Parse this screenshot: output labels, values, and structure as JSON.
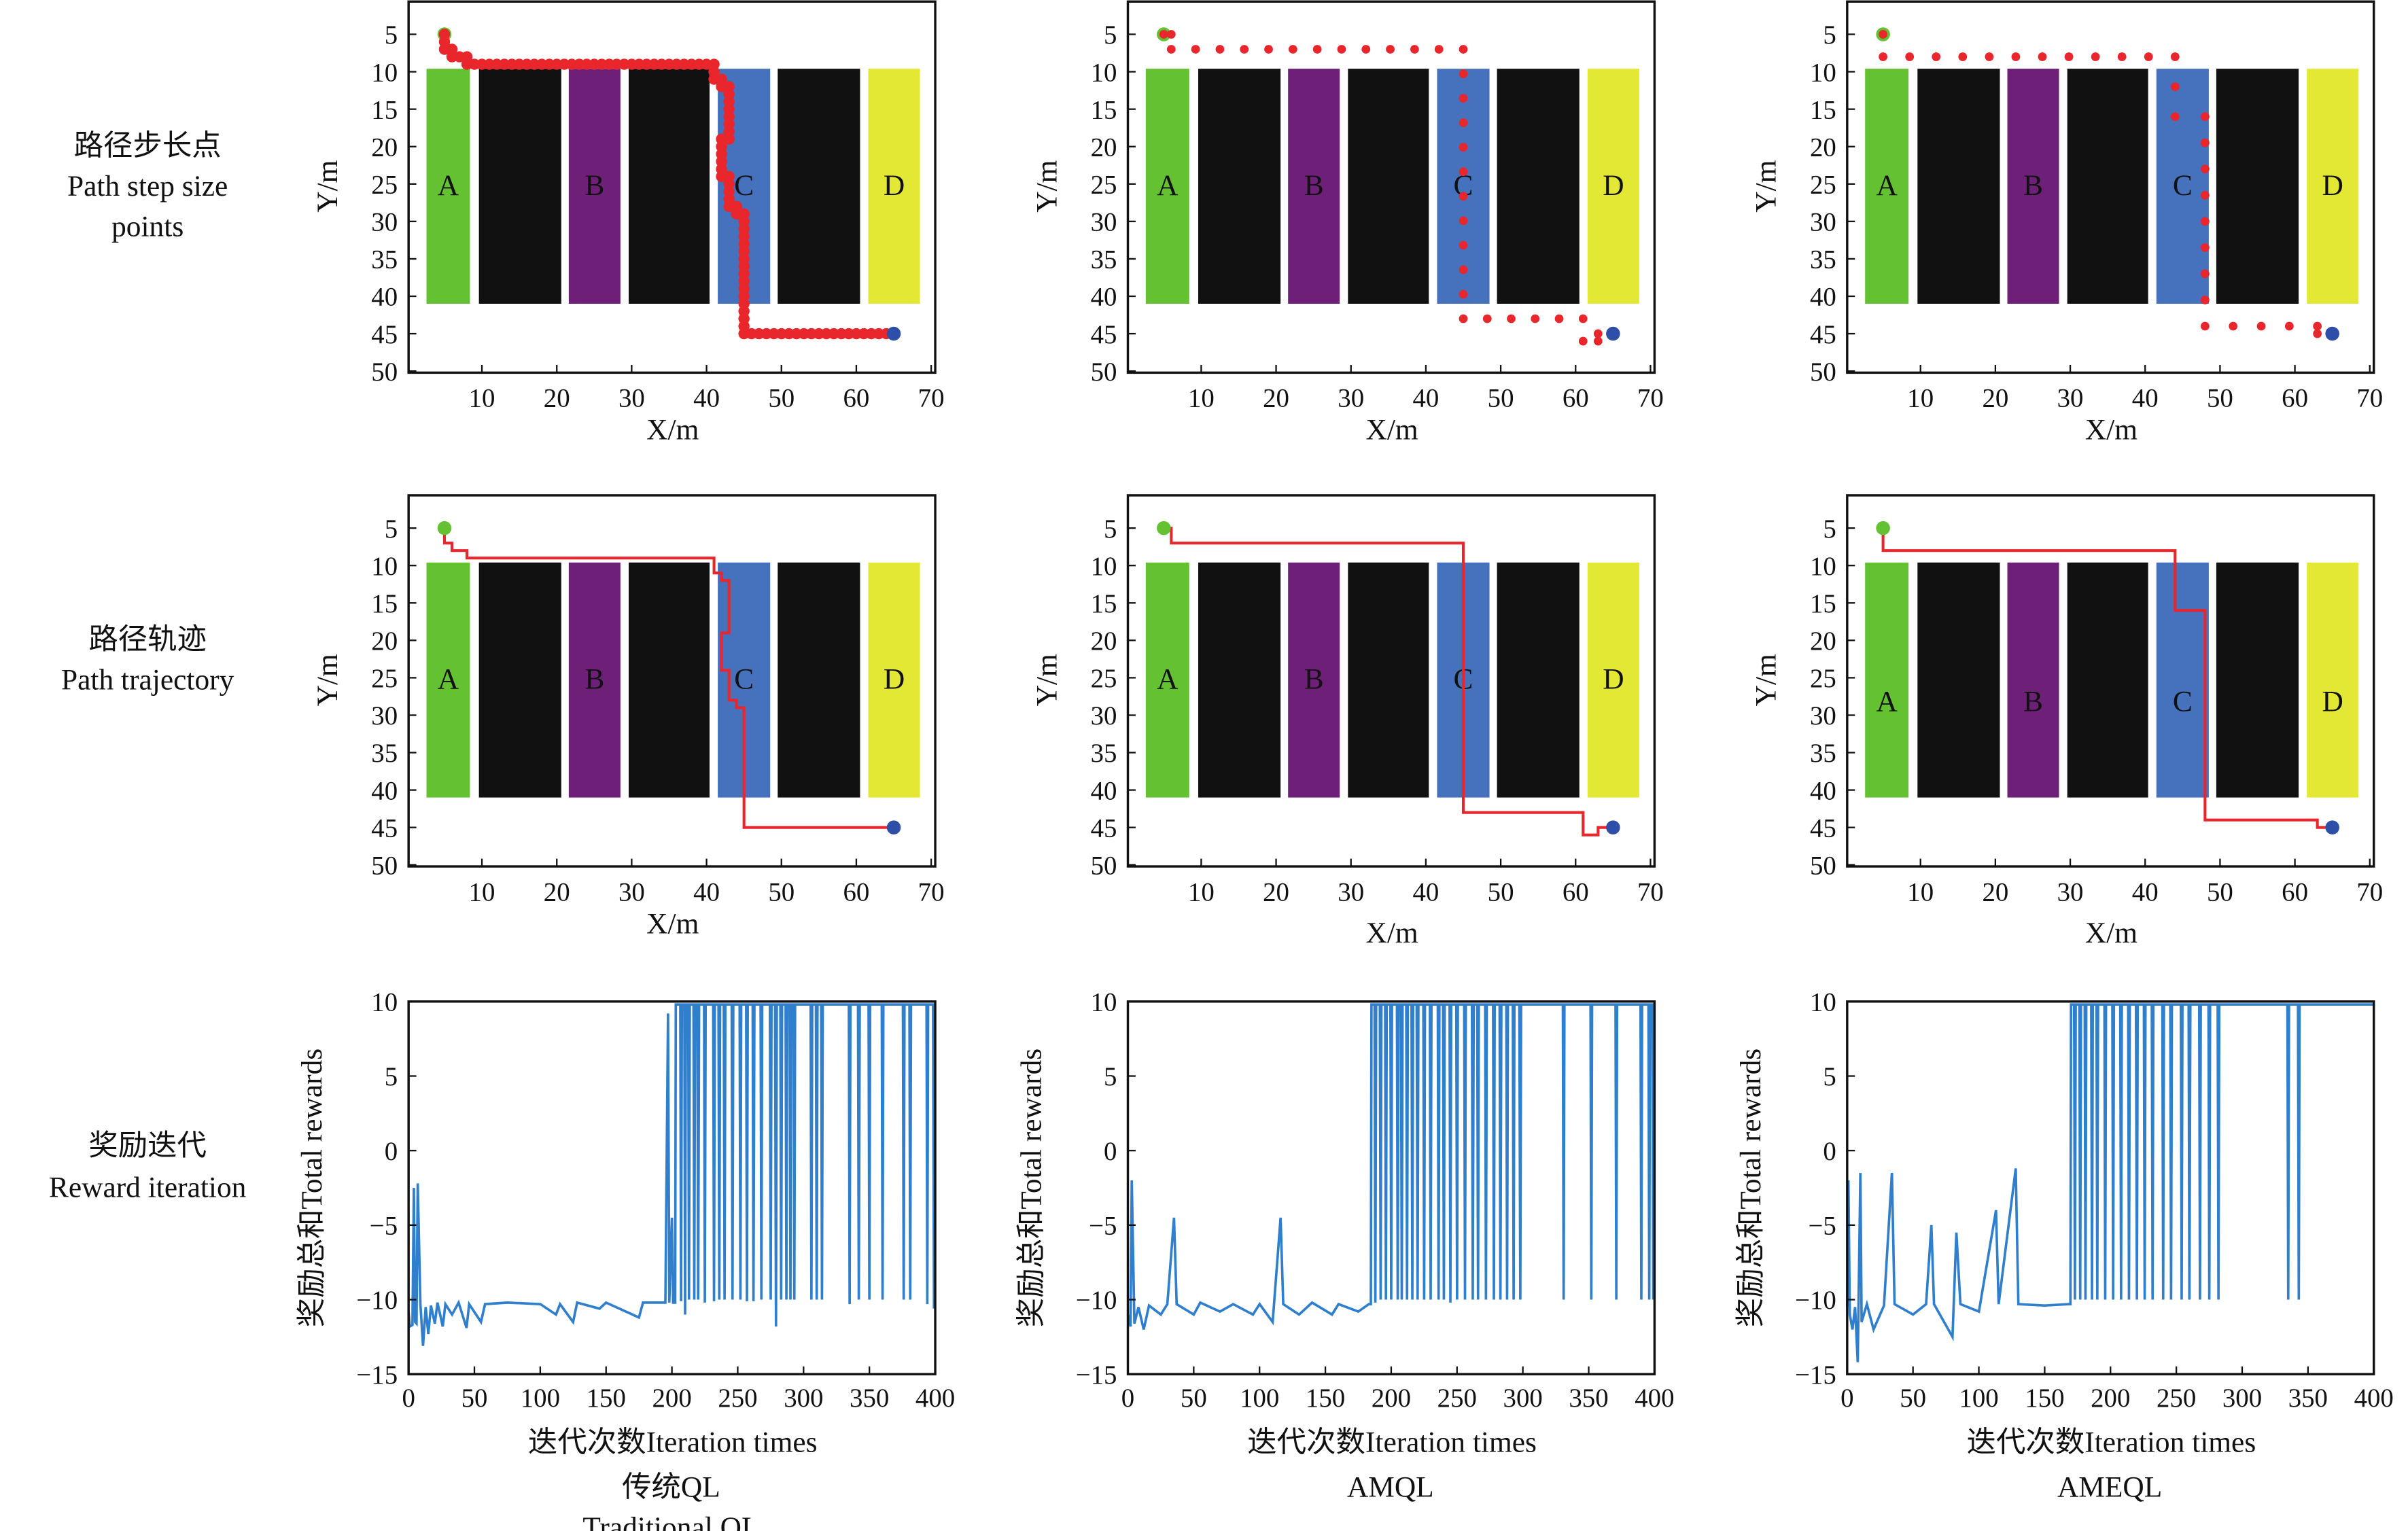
{
  "row_labels": [
    {
      "zh": "路径步长点",
      "en1": "Path step size",
      "en2": "points"
    },
    {
      "zh": "路径轨迹",
      "en1": "Path trajectory",
      "en2": ""
    },
    {
      "zh": "奖励迭代",
      "en1": "Reward iteration",
      "en2": ""
    }
  ],
  "columns": [
    {
      "title_zh": "传统QL",
      "title_en": "Traditional QL"
    },
    {
      "title_zh": "AMQL",
      "title_en": ""
    },
    {
      "title_zh": "AMEQL",
      "title_en": ""
    }
  ],
  "colors": {
    "green": "#63c132",
    "black": "#111111",
    "purple": "#6e2079",
    "blue": "#4571bd",
    "yellow": "#e3e834",
    "path": "#e8262c",
    "start": "#63c132",
    "goal": "#2d4fa8",
    "reward_line": "#2f7fcc"
  },
  "chart_data": [
    {
      "type": "path-map",
      "xlabel": "X/m",
      "ylabel": "Y/m",
      "xlim": [
        0,
        70
      ],
      "ylim": [
        50,
        0
      ],
      "xticks": [
        "10",
        "20",
        "30",
        "40",
        "50",
        "60",
        "70"
      ],
      "yticks": [
        "5",
        "10",
        "15",
        "20",
        "25",
        "30",
        "35",
        "40",
        "45",
        "50"
      ],
      "zones": [
        {
          "label": "A",
          "x": [
            2.6,
            8.4
          ],
          "y": [
            9.6,
            41
          ],
          "color": "green"
        },
        {
          "label": "",
          "x": [
            9.6,
            20.6
          ],
          "y": [
            9.6,
            41
          ],
          "color": "black"
        },
        {
          "label": "B",
          "x": [
            21.6,
            28.5
          ],
          "y": [
            9.6,
            41
          ],
          "color": "purple"
        },
        {
          "label": "",
          "x": [
            29.6,
            40.4
          ],
          "y": [
            9.6,
            41
          ],
          "color": "black"
        },
        {
          "label": "C",
          "x": [
            41.5,
            48.5
          ],
          "y": [
            9.6,
            41
          ],
          "color": "blue"
        },
        {
          "label": "",
          "x": [
            49.5,
            60.5
          ],
          "y": [
            9.6,
            41
          ],
          "color": "black"
        },
        {
          "label": "D",
          "x": [
            61.6,
            68.5
          ],
          "y": [
            9.6,
            41
          ],
          "color": "yellow"
        }
      ],
      "start": [
        5,
        5
      ],
      "goal": [
        65,
        45
      ],
      "paths": [
        {
          "points": [
            [
              5,
              5
            ],
            [
              5,
              7
            ],
            [
              6,
              7
            ],
            [
              6,
              8
            ],
            [
              8,
              8
            ],
            [
              8,
              9
            ],
            [
              41,
              9
            ],
            [
              41,
              11
            ],
            [
              42,
              11
            ],
            [
              42,
              12
            ],
            [
              43,
              12
            ],
            [
              43,
              19
            ],
            [
              42,
              19
            ],
            [
              42,
              24
            ],
            [
              43,
              24
            ],
            [
              43,
              28
            ],
            [
              44,
              28
            ],
            [
              44,
              29
            ],
            [
              45,
              29
            ],
            [
              45,
              45
            ],
            [
              65,
              45
            ]
          ],
          "step": 1
        },
        {
          "points": [
            [
              5,
              5
            ],
            [
              6,
              5
            ],
            [
              6,
              7
            ],
            [
              45,
              7
            ],
            [
              45,
              43
            ],
            [
              61,
              43
            ],
            [
              61,
              46
            ],
            [
              63,
              46
            ],
            [
              63,
              45
            ],
            [
              65,
              45
            ]
          ],
          "step": 3.2
        },
        {
          "points": [
            [
              5,
              5
            ],
            [
              5,
              8
            ],
            [
              44,
              8
            ],
            [
              44,
              16
            ],
            [
              48,
              16
            ],
            [
              48,
              44
            ],
            [
              63,
              44
            ],
            [
              63,
              45
            ],
            [
              65,
              45
            ]
          ],
          "step": 3.6
        }
      ]
    },
    {
      "type": "line",
      "xlabel": "迭代次数Iteration times",
      "ylabel": "奖励总和Total rewards",
      "xlim": [
        0,
        400
      ],
      "ylim": [
        -15,
        10
      ],
      "xticks": [
        "0",
        "50",
        "100",
        "150",
        "200",
        "250",
        "300",
        "350",
        "400"
      ],
      "yticks": [
        "10",
        "5",
        "0",
        "−5",
        "−10",
        "−15"
      ],
      "series": [
        {
          "early": [
            [
              0,
              -10.8
            ],
            [
              1,
              -11.8
            ],
            [
              3,
              -11.7
            ],
            [
              4,
              -2.5
            ],
            [
              5,
              -11.5
            ],
            [
              6,
              -11.6
            ],
            [
              7,
              -2.2
            ],
            [
              9,
              -10.3
            ],
            [
              11,
              -13.1
            ],
            [
              13,
              -10.5
            ],
            [
              15,
              -12.3
            ],
            [
              17,
              -10.4
            ],
            [
              20,
              -11.6
            ],
            [
              22,
              -10.2
            ],
            [
              26,
              -11.8
            ],
            [
              28,
              -10.3
            ],
            [
              33,
              -11
            ],
            [
              38,
              -10.2
            ],
            [
              44,
              -11.9
            ],
            [
              46,
              -10.3
            ],
            [
              55,
              -11.5
            ],
            [
              58,
              -10.3
            ],
            [
              75,
              -10.2
            ],
            [
              100,
              -10.3
            ],
            [
              112,
              -11
            ],
            [
              115,
              -10.3
            ],
            [
              125,
              -11.5
            ],
            [
              128,
              -10.2
            ],
            [
              145,
              -10.6
            ],
            [
              150,
              -10.2
            ],
            [
              175,
              -11.2
            ],
            [
              178,
              -10.2
            ],
            [
              195,
              -10.2
            ],
            [
              197,
              9.2
            ],
            [
              198,
              -10.2
            ],
            [
              200,
              -4.5
            ],
            [
              201,
              -10.2
            ]
          ],
          "switch": 203,
          "high": 9.8,
          "dips": [
            [
              207,
              -10.1
            ],
            [
              210,
              -11
            ],
            [
              213,
              -10
            ],
            [
              217,
              -10
            ],
            [
              220,
              -10
            ],
            [
              225,
              -10.2
            ],
            [
              232,
              -10.1
            ],
            [
              236,
              -10
            ],
            [
              240,
              -10
            ],
            [
              246,
              -10
            ],
            [
              252,
              -10
            ],
            [
              257,
              -10.1
            ],
            [
              262,
              -10.1
            ],
            [
              268,
              -10
            ],
            [
              275,
              -10
            ],
            [
              279,
              -11.8
            ],
            [
              283,
              -10
            ],
            [
              287,
              -10
            ],
            [
              290,
              -10
            ],
            [
              293,
              -10
            ],
            [
              306,
              -10
            ],
            [
              310,
              -10
            ],
            [
              314,
              -10
            ],
            [
              335,
              -10.3
            ],
            [
              342,
              -10
            ],
            [
              350,
              -10
            ],
            [
              360,
              -10
            ],
            [
              376,
              -10
            ],
            [
              381,
              -10
            ],
            [
              394,
              -10.3
            ],
            [
              399,
              -10.6
            ]
          ]
        },
        {
          "early": [
            [
              0,
              -11
            ],
            [
              2,
              -11.8
            ],
            [
              3,
              -2
            ],
            [
              5,
              -11.6
            ],
            [
              8,
              -10.5
            ],
            [
              12,
              -12
            ],
            [
              16,
              -10.4
            ],
            [
              25,
              -11
            ],
            [
              30,
              -10.3
            ],
            [
              35,
              -4.5
            ],
            [
              37,
              -10.3
            ],
            [
              50,
              -11
            ],
            [
              55,
              -10.2
            ],
            [
              70,
              -10.8
            ],
            [
              80,
              -10.3
            ],
            [
              95,
              -11
            ],
            [
              100,
              -10.3
            ],
            [
              110,
              -11.5
            ],
            [
              116,
              -4.5
            ],
            [
              118,
              -10.3
            ],
            [
              130,
              -11
            ],
            [
              140,
              -10.2
            ],
            [
              155,
              -11
            ],
            [
              160,
              -10.3
            ],
            [
              175,
              -10.8
            ],
            [
              183,
              -10.3
            ]
          ],
          "switch": 185,
          "high": 9.8,
          "dips": [
            [
              188,
              -10.2
            ],
            [
              192,
              -10
            ],
            [
              196,
              -10
            ],
            [
              200,
              -10
            ],
            [
              205,
              -10
            ],
            [
              208,
              -10
            ],
            [
              212,
              -10
            ],
            [
              216,
              -10
            ],
            [
              220,
              -10
            ],
            [
              225,
              -10
            ],
            [
              230,
              -10
            ],
            [
              236,
              -10
            ],
            [
              240,
              -10
            ],
            [
              245,
              -10.2
            ],
            [
              250,
              -10
            ],
            [
              256,
              -10
            ],
            [
              262,
              -10
            ],
            [
              266,
              -10
            ],
            [
              272,
              -10
            ],
            [
              278,
              -10
            ],
            [
              283,
              -10
            ],
            [
              288,
              -10
            ],
            [
              293,
              -10
            ],
            [
              298,
              -10
            ],
            [
              331,
              -10
            ],
            [
              352,
              -10
            ],
            [
              371,
              -10
            ],
            [
              390,
              -10
            ],
            [
              396,
              -10
            ],
            [
              399,
              -10
            ]
          ]
        },
        {
          "early": [
            [
              0,
              -10.5
            ],
            [
              1,
              -2
            ],
            [
              2,
              -11
            ],
            [
              4,
              -12
            ],
            [
              6,
              -10.5
            ],
            [
              8,
              -14.2
            ],
            [
              10,
              -1.5
            ],
            [
              11,
              -11.5
            ],
            [
              15,
              -10.3
            ],
            [
              20,
              -12
            ],
            [
              28,
              -10.4
            ],
            [
              34,
              -1.5
            ],
            [
              36,
              -10.3
            ],
            [
              50,
              -11
            ],
            [
              60,
              -10.3
            ],
            [
              64,
              -5
            ],
            [
              66,
              -10.3
            ],
            [
              80,
              -12.5
            ],
            [
              83,
              -5.5
            ],
            [
              86,
              -10.3
            ],
            [
              100,
              -10.8
            ],
            [
              113,
              -4
            ],
            [
              115,
              -10.3
            ],
            [
              128,
              -1.2
            ],
            [
              130,
              -10.3
            ],
            [
              150,
              -10.4
            ],
            [
              168,
              -10.3
            ]
          ],
          "switch": 170,
          "high": 9.8,
          "dips": [
            [
              173,
              -10
            ],
            [
              177,
              -10
            ],
            [
              181,
              -10
            ],
            [
              186,
              -10
            ],
            [
              190,
              -10
            ],
            [
              196,
              -10
            ],
            [
              202,
              -10
            ],
            [
              208,
              -10
            ],
            [
              214,
              -10
            ],
            [
              220,
              -10
            ],
            [
              226,
              -10
            ],
            [
              232,
              -10
            ],
            [
              240,
              -10
            ],
            [
              246,
              -10
            ],
            [
              254,
              -10
            ],
            [
              260,
              -10
            ],
            [
              268,
              -10
            ],
            [
              275,
              -10
            ],
            [
              282,
              -10
            ],
            [
              335,
              -10
            ],
            [
              343,
              -10
            ]
          ]
        }
      ]
    }
  ]
}
